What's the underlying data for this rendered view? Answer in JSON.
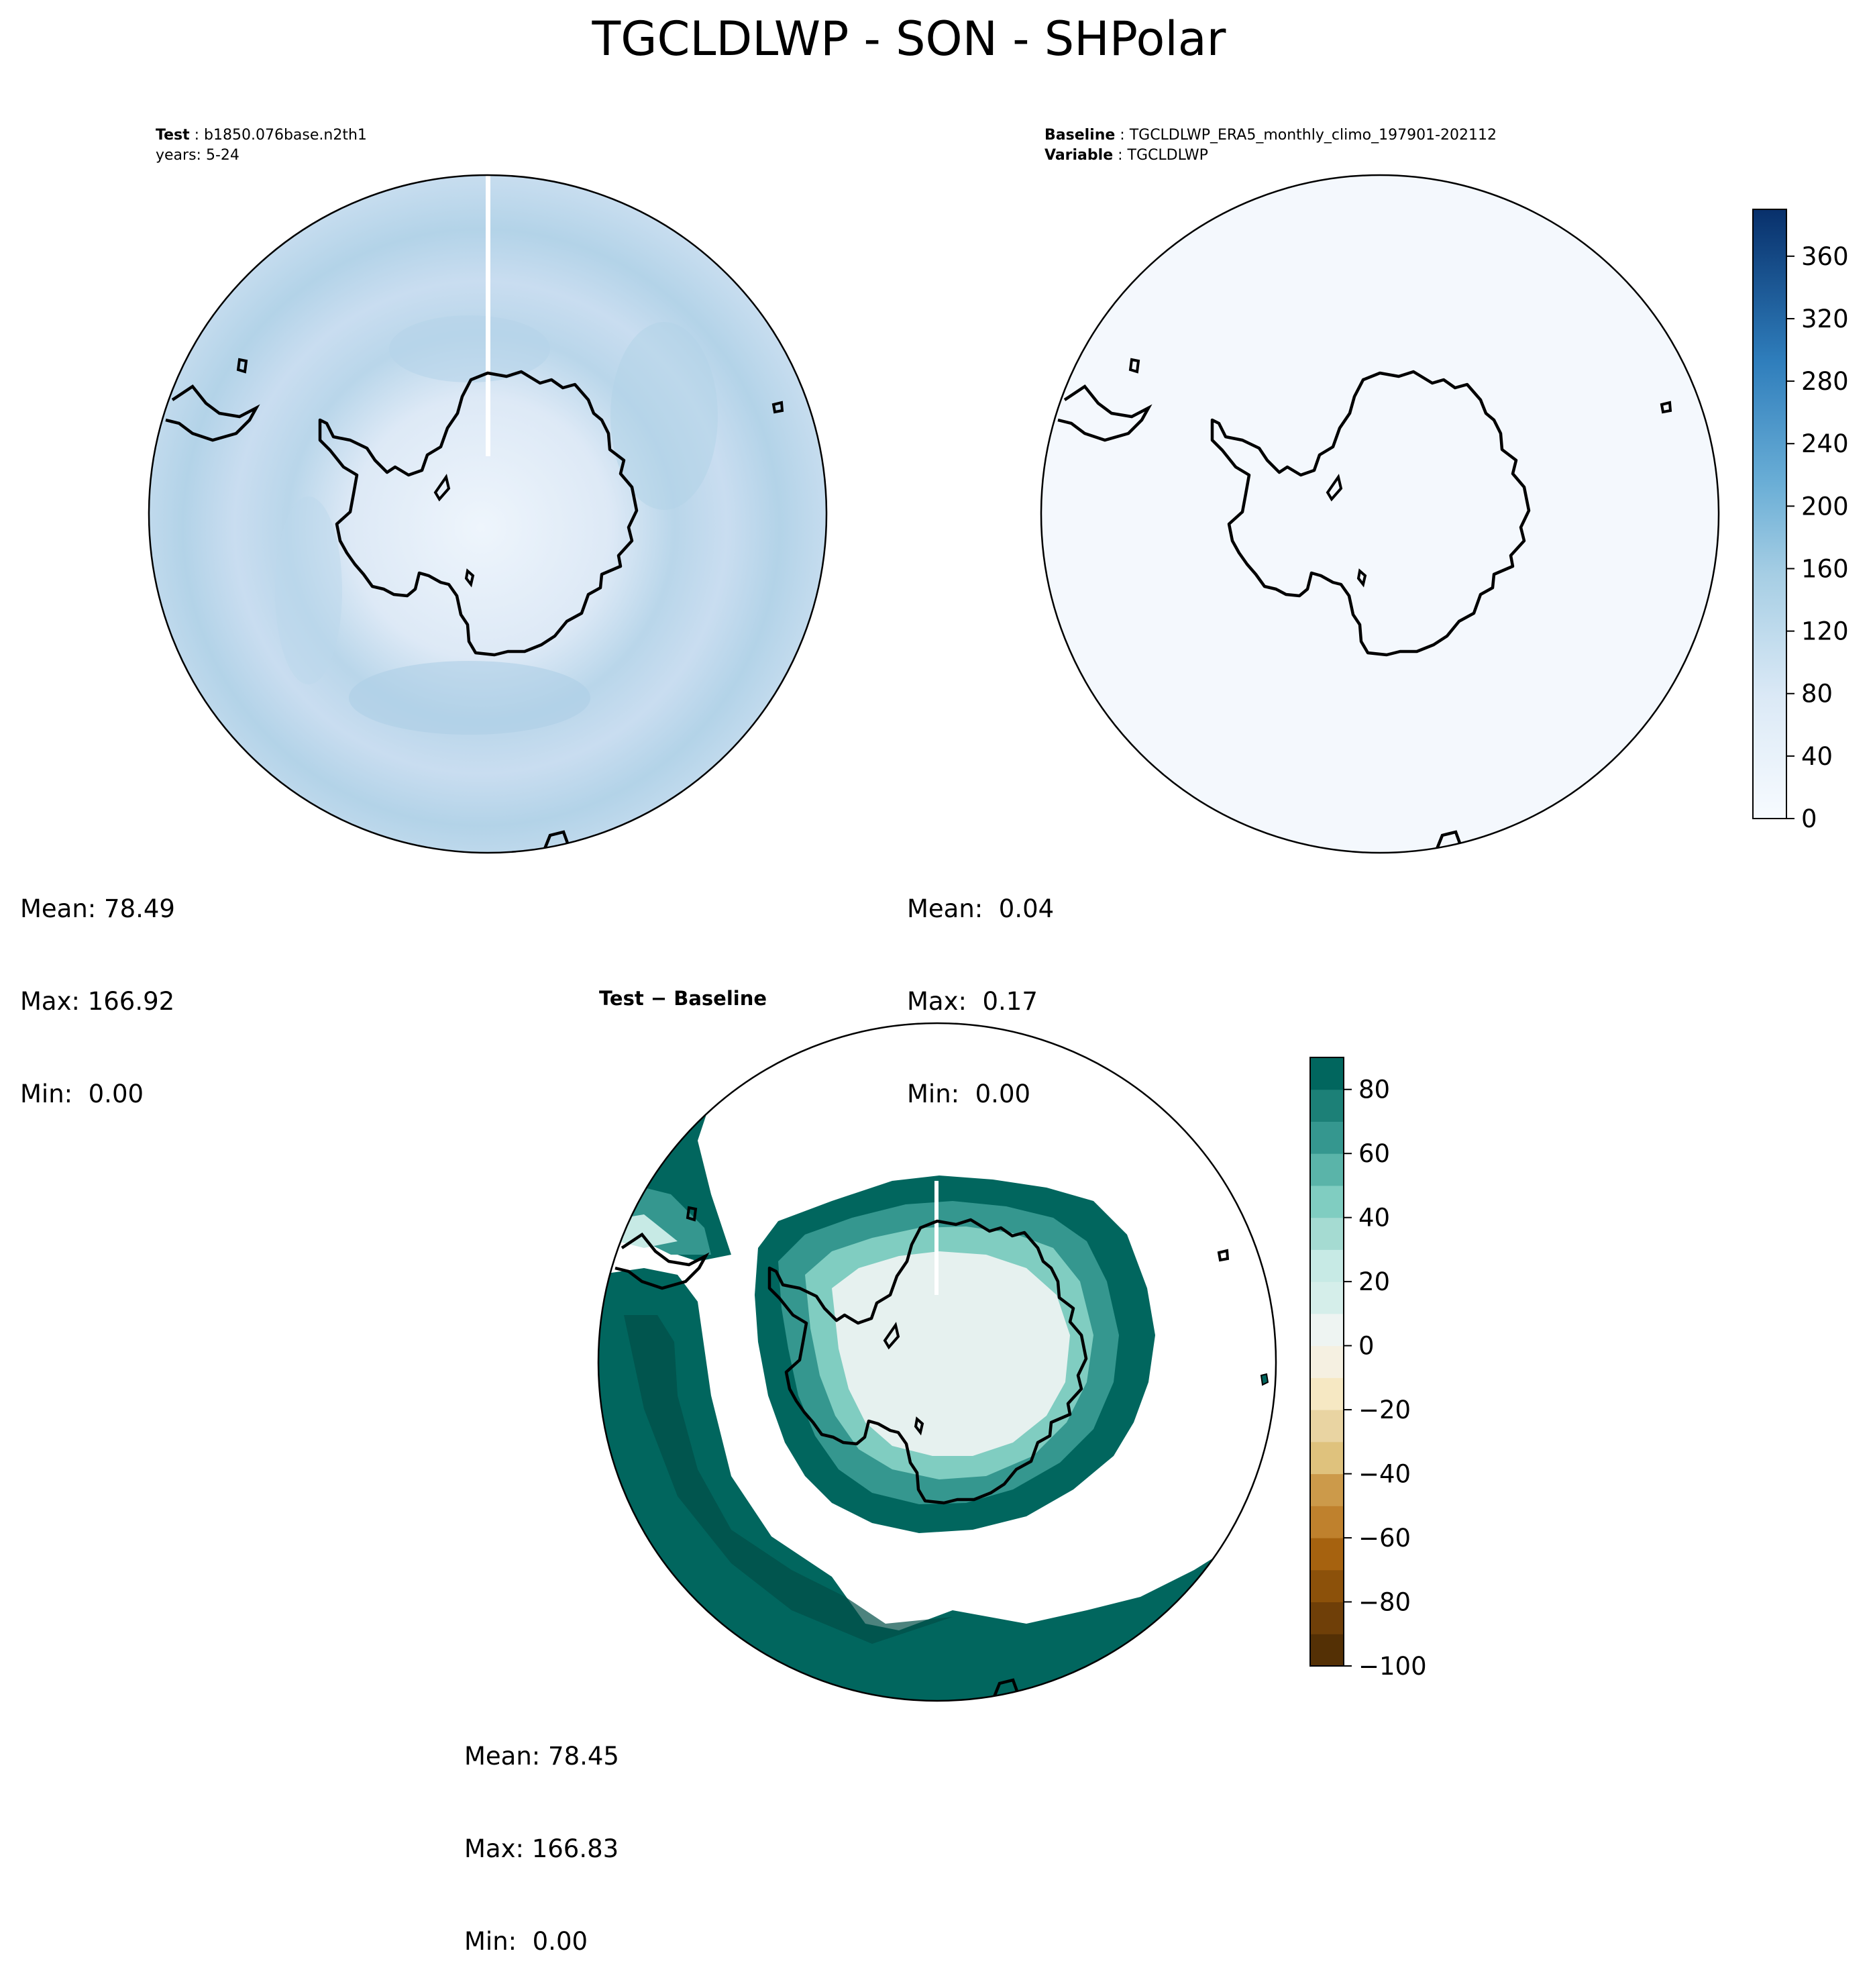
{
  "figure": {
    "suptitle": "TGCLDLWP - SON - SHPolar"
  },
  "panels": [
    {
      "id": "test",
      "header": [
        {
          "bold": "Test",
          "text": "b1850.076base.n2th1"
        },
        {
          "bold": "",
          "text": "years: 5-24"
        }
      ],
      "stats": {
        "mean": "Mean: 78.49",
        "max": "Max: 166.92",
        "min": "Min:  0.00"
      },
      "field": "test"
    },
    {
      "id": "baseline",
      "header": [
        {
          "bold": "Baseline",
          "text": "TGCLDLWP_ERA5_monthly_climo_197901-202112"
        },
        {
          "bold": "Variable",
          "text": "TGCLDLWP"
        }
      ],
      "stats": {
        "mean": "Mean:  0.04",
        "max": "Max:  0.17",
        "min": "Min:  0.00"
      },
      "field": "baseline"
    },
    {
      "id": "diff",
      "title": "Test − Baseline",
      "stats": {
        "mean": "Mean: 78.45",
        "max": "Max: 166.83",
        "min": "Min:  0.00"
      },
      "field": "diff"
    }
  ],
  "chart_data": [
    {
      "type": "heatmap",
      "projection": "south-polar-stereographic",
      "title": "Test: b1850.076base.n2th1 years: 5-24",
      "colormap": "Blues",
      "vmin": 0,
      "vmax": 390,
      "stats": {
        "mean": 78.49,
        "max": 166.92,
        "min": 0.0
      }
    },
    {
      "type": "heatmap",
      "projection": "south-polar-stereographic",
      "title": "Baseline: TGCLDLWP_ERA5_monthly_climo_197901-202112 Variable: TGCLDLWP",
      "colormap": "Blues",
      "colorbar": {
        "ticks": [
          0,
          40,
          80,
          120,
          160,
          200,
          240,
          280,
          320,
          360
        ],
        "range": [
          0,
          390
        ]
      },
      "stats": {
        "mean": 0.04,
        "max": 0.17,
        "min": 0.0
      }
    },
    {
      "type": "heatmap",
      "projection": "south-polar-stereographic",
      "title": "Test − Baseline",
      "colormap": "BrBG",
      "colorbar": {
        "ticks": [
          80,
          60,
          40,
          20,
          0,
          -20,
          -40,
          -60,
          -80,
          -100
        ],
        "tick_labels": [
          "80",
          "60",
          "40",
          "20",
          "0",
          "−20",
          "−40",
          "−60",
          "−80",
          "−100"
        ],
        "range": [
          -100,
          90
        ]
      },
      "stats": {
        "mean": 78.45,
        "max": 166.83,
        "min": 0.0
      }
    }
  ]
}
